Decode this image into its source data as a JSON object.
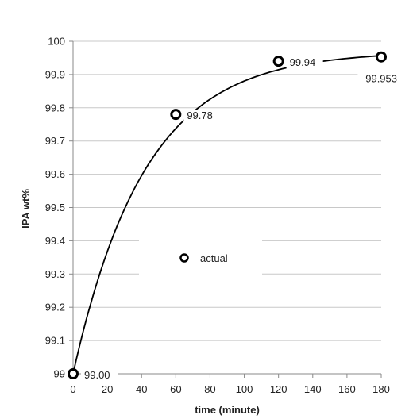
{
  "chart_data": {
    "type": "scatter",
    "xlabel": "time (minute)",
    "ylabel": "IPA wt%",
    "xlim": [
      0,
      180
    ],
    "ylim": [
      99,
      100
    ],
    "xticks": [
      0,
      20,
      40,
      60,
      80,
      100,
      120,
      140,
      160,
      180
    ],
    "yticks": [
      99,
      99.1,
      99.2,
      99.3,
      99.4,
      99.5,
      99.6,
      99.7,
      99.8,
      99.9,
      100
    ],
    "ytick_labels": [
      "99",
      "99.1",
      "99.2",
      "99.3",
      "99.4",
      "99.5",
      "99.6",
      "99.7",
      "99.8",
      "99.9",
      "100"
    ],
    "grid": "horizontal",
    "legend_position": "center",
    "series": [
      {
        "name": "actual",
        "marker": "open-circle",
        "color": "#000000",
        "x": [
          0,
          60,
          120,
          180
        ],
        "y": [
          99.0,
          99.78,
          99.94,
          99.953
        ],
        "labels": [
          "99.00",
          "99.78",
          "99.94",
          "99.953"
        ]
      }
    ],
    "trend_curve": {
      "x": [
        0,
        180
      ],
      "y_start": 99.0,
      "y_end": 99.97,
      "color": "#000000"
    }
  }
}
